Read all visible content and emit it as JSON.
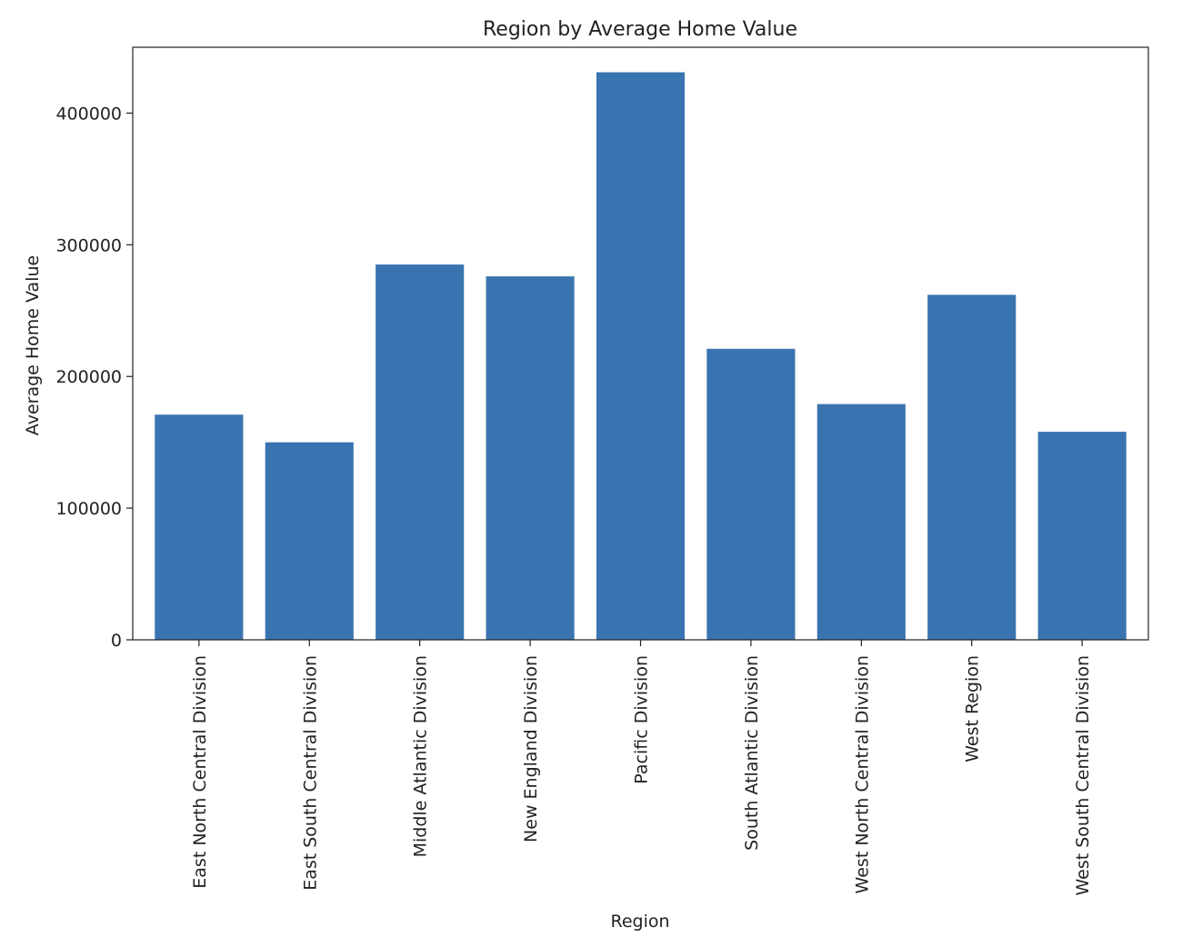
{
  "chart_data": {
    "type": "bar",
    "title": "Region by Average Home Value",
    "xlabel": "Region",
    "ylabel": "Average Home Value",
    "categories": [
      "East North Central Division",
      "East South Central Division",
      "Middle Atlantic Division",
      "New England Division",
      "Pacific Division",
      "South Atlantic Division",
      "West North Central Division",
      "West Region",
      "West South Central Division"
    ],
    "values": [
      171000,
      150000,
      285000,
      276000,
      431000,
      221000,
      179000,
      262000,
      158000
    ],
    "ylim": [
      0,
      450000
    ],
    "yticks": [
      0,
      100000,
      200000,
      300000,
      400000
    ],
    "ytick_labels": [
      "0",
      "100000",
      "200000",
      "300000",
      "400000"
    ],
    "bar_color": "#3a74b0",
    "grid": false,
    "legend": "none"
  }
}
